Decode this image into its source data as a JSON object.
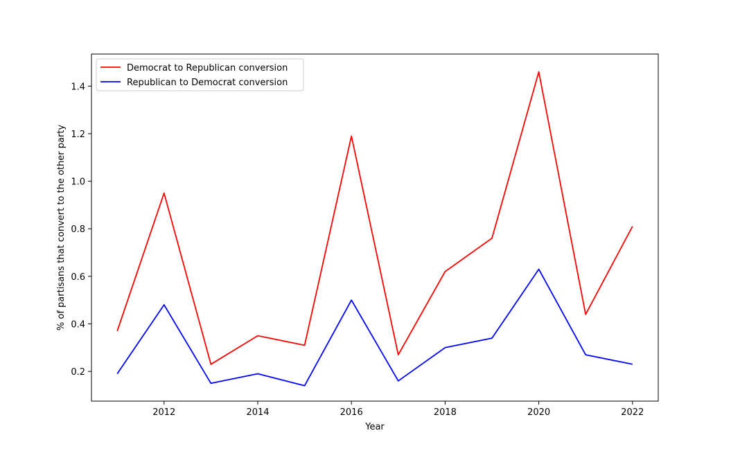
{
  "chart_data": {
    "type": "line",
    "title": "",
    "xlabel": "Year",
    "ylabel": "% of partisans that convert to the other party",
    "x": [
      2011,
      2012,
      2013,
      2014,
      2015,
      2016,
      2017,
      2018,
      2019,
      2020,
      2021,
      2022
    ],
    "xlim": [
      2010.45,
      2022.55
    ],
    "ylim": [
      0.075,
      1.535
    ],
    "xticks": [
      2012,
      2014,
      2016,
      2018,
      2020,
      2022
    ],
    "yticks": [
      0.2,
      0.4,
      0.6,
      0.8,
      1.0,
      1.2,
      1.4
    ],
    "xtick_labels": [
      "2012",
      "2014",
      "2016",
      "2018",
      "2020",
      "2022"
    ],
    "ytick_labels": [
      "0.2",
      "0.4",
      "0.6",
      "0.8",
      "1.0",
      "1.2",
      "1.4"
    ],
    "grid": false,
    "legend_position": "top-left",
    "series": [
      {
        "name": "Democrat to Republican conversion",
        "color": "#ff0000",
        "values": [
          0.37,
          0.95,
          0.23,
          0.35,
          0.31,
          1.19,
          0.27,
          0.62,
          0.76,
          1.46,
          0.44,
          0.81
        ]
      },
      {
        "name": "Republican to Democrat conversion",
        "color": "#0000ff",
        "values": [
          0.19,
          0.48,
          0.15,
          0.19,
          0.14,
          0.5,
          0.16,
          0.3,
          0.34,
          0.63,
          0.27,
          0.23
        ]
      }
    ]
  }
}
